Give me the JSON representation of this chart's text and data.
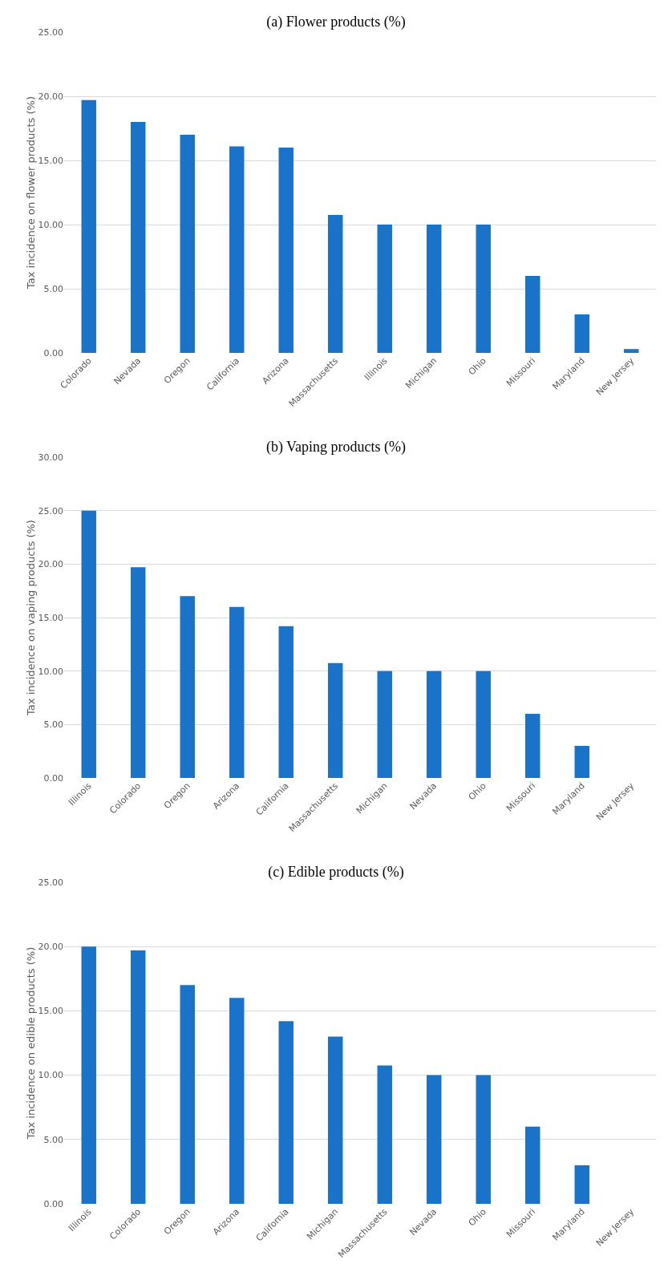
{
  "chart_data": [
    {
      "type": "bar",
      "title": "(a) Flower products (%)",
      "ylabel": "Tax incidence on flower products (%)",
      "categories": [
        "Colorado",
        "Nevada",
        "Oregon",
        "California",
        "Arizona",
        "Massachusetts",
        "Illinois",
        "Michigan",
        "Ohio",
        "Missouri",
        "Maryland",
        "New Jersey"
      ],
      "values": [
        19.7,
        18,
        17,
        16.1,
        16,
        10.75,
        10,
        10,
        10,
        6,
        3,
        0.3
      ],
      "color": "#1873c9",
      "ylim": [
        0,
        25
      ],
      "yticks": [
        {
          "value": 0,
          "label": "0.00"
        },
        {
          "value": 5,
          "label": "5.00"
        },
        {
          "value": 10,
          "label": "10.00"
        },
        {
          "value": 15,
          "label": "15.00"
        },
        {
          "value": 20,
          "label": "20.00"
        },
        {
          "value": 25,
          "label": "25.00"
        }
      ],
      "grid": "y"
    },
    {
      "type": "bar",
      "title": "(b) Vaping products (%)",
      "ylabel": "Tax incidence on vaping products (%)",
      "categories": [
        "Illinois",
        "Colorado",
        "Oregon",
        "Arizona",
        "California",
        "Massachusetts",
        "Michigan",
        "Nevada",
        "Ohio",
        "Missouri",
        "Maryland",
        "New Jersey"
      ],
      "values": [
        25,
        19.7,
        17,
        16,
        14.2,
        10.75,
        10,
        10,
        10,
        6,
        3,
        0
      ],
      "color": "#1873c9",
      "ylim": [
        0,
        30
      ],
      "yticks": [
        {
          "value": 0,
          "label": "0.00"
        },
        {
          "value": 5,
          "label": "5.00"
        },
        {
          "value": 10,
          "label": "10.00"
        },
        {
          "value": 15,
          "label": "15.00"
        },
        {
          "value": 20,
          "label": "20.00"
        },
        {
          "value": 25,
          "label": "25.00"
        },
        {
          "value": 30,
          "label": "30.00"
        }
      ],
      "grid": "y"
    },
    {
      "type": "bar",
      "title": "(c) Edible products (%)",
      "ylabel": "Tax incidence on edible products (%)",
      "categories": [
        "Illinois",
        "Colorado",
        "Oregon",
        "Arizona",
        "California",
        "Michigan",
        "Massachusetts",
        "Nevada",
        "Ohio",
        "Missouri",
        "Maryland",
        "New Jersey"
      ],
      "values": [
        20,
        19.7,
        17,
        16,
        14.2,
        13,
        10.75,
        10,
        10,
        6,
        3,
        0
      ],
      "color": "#1873c9",
      "ylim": [
        0,
        25
      ],
      "yticks": [
        {
          "value": 0,
          "label": "0.00"
        },
        {
          "value": 5,
          "label": "5.00"
        },
        {
          "value": 10,
          "label": "10.00"
        },
        {
          "value": 15,
          "label": "15.00"
        },
        {
          "value": 20,
          "label": "20.00"
        },
        {
          "value": 25,
          "label": "25.00"
        }
      ],
      "grid": "y"
    }
  ]
}
